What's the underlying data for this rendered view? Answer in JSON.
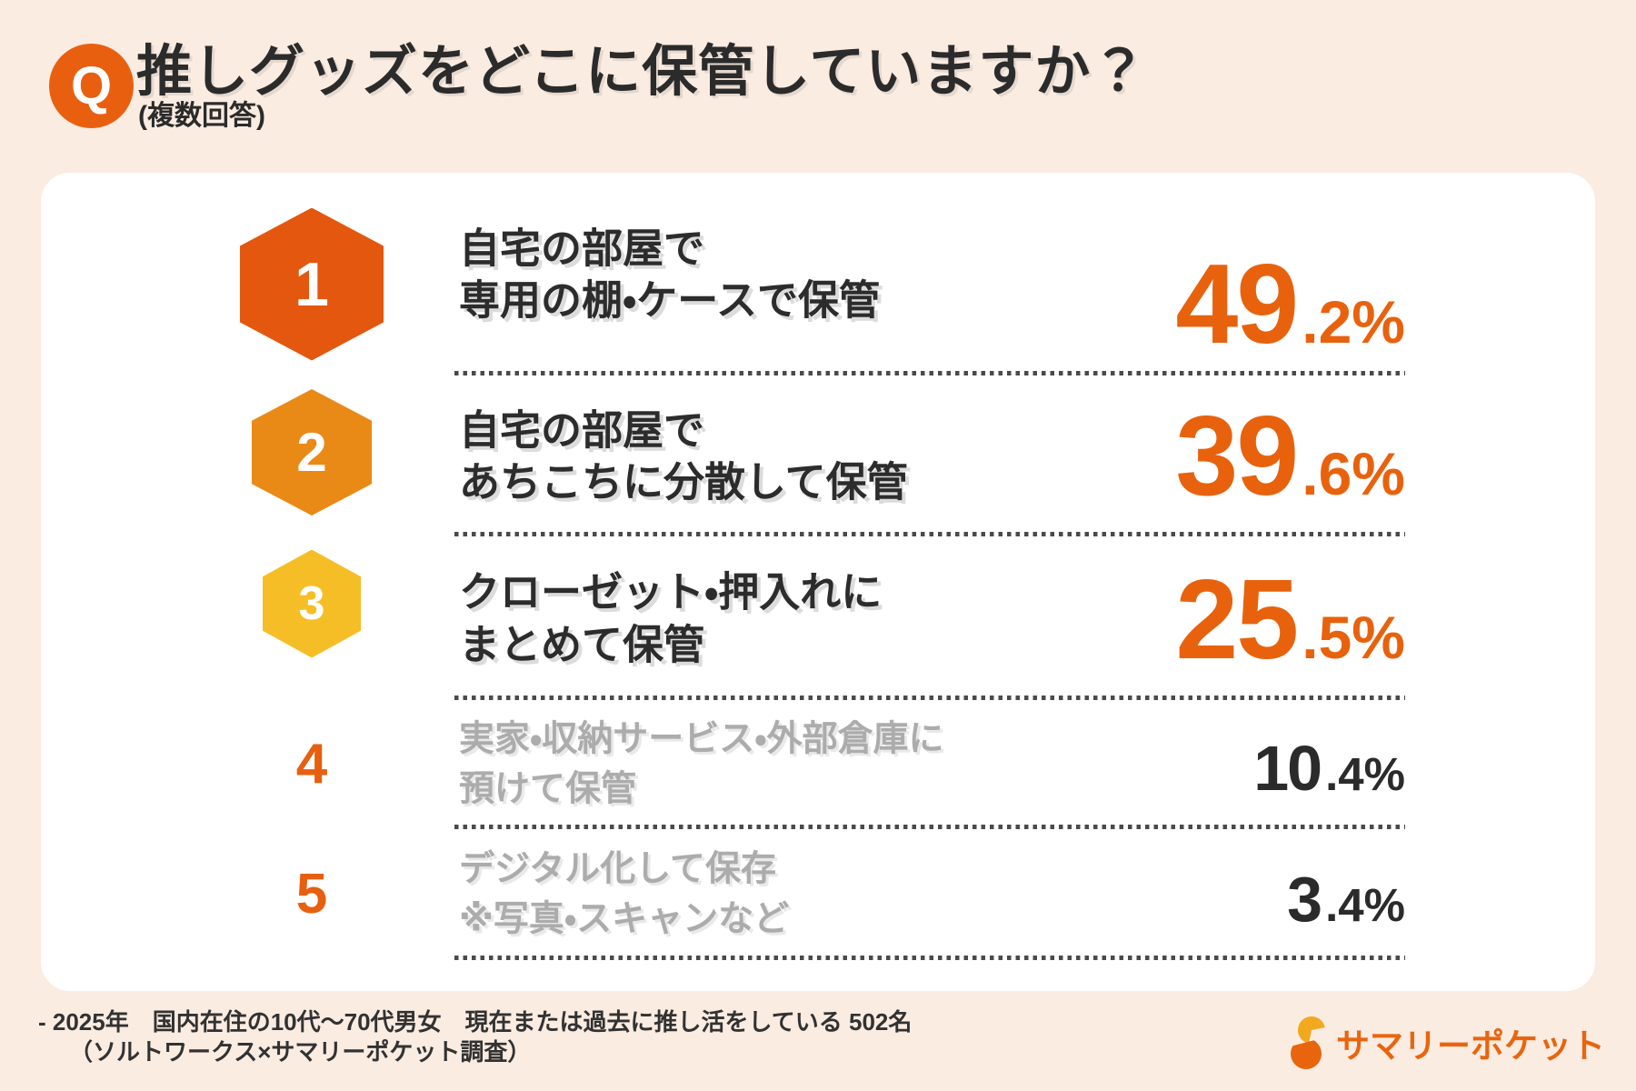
{
  "header": {
    "q_label": "Q",
    "title": "推しグッズをどこに保管していますか？",
    "subtitle": "(複数回答)"
  },
  "chart_data": {
    "type": "table",
    "title": "推しグッズをどこに保管していますか？",
    "subtitle": "(複数回答)",
    "categories": [
      "自宅の部屋で専用の棚・ケースで保管",
      "自宅の部屋であちこちに分散して保管",
      "クローゼット・押入れにまとめて保管",
      "実家・収納サービス・外部倉庫に預けて保管",
      "デジタル化して保存 ※写真・スキャンなど"
    ],
    "values": [
      49.2,
      39.6,
      25.5,
      10.4,
      3.4
    ],
    "ranks": [
      1,
      2,
      3,
      4,
      5
    ],
    "unit": "%"
  },
  "ranking": {
    "rows": [
      {
        "rank": "1",
        "label_line1": "自宅の部屋で",
        "label_line2": "専用の棚・ケースで保管",
        "value_main": "49",
        "value_sub": ".2%"
      },
      {
        "rank": "2",
        "label_line1": "自宅の部屋で",
        "label_line2": "あちこちに分散して保管",
        "value_main": "39",
        "value_sub": ".6%"
      },
      {
        "rank": "3",
        "label_line1": "クローゼット・押入れに",
        "label_line2": "まとめて保管",
        "value_main": "25",
        "value_sub": ".5%"
      },
      {
        "rank": "4",
        "label_line1": "実家・収納サービス・外部倉庫に",
        "label_line2": "預けて保管",
        "value_main": "10",
        "value_sub": ".4%"
      },
      {
        "rank": "5",
        "label_line1": "デジタル化して保存",
        "label_line2": "※写真・スキャンなど",
        "value_main": "3",
        "value_sub": ".4%"
      }
    ]
  },
  "footer": {
    "note_line1": "- 2025年　国内在住の10代～70代男女　現在または過去に推し活をしている 502名",
    "note_line2": "（ソルトワークス×サマリーポケット調査）",
    "logo_text": "サマリーポケット"
  },
  "colors": {
    "background": "#FBECE2",
    "card": "#FFFFFF",
    "brand_orange": "#E8600F",
    "rank1_hex": "#E4570E",
    "rank2_hex": "#E98A17",
    "rank3_hex": "#F6BE26",
    "percent_orange": "#E8620D",
    "percent_dark": "#2B2B2B",
    "label_dark": "#2C2C2C",
    "label_gray": "#ACACAC",
    "logo_yellow": "#F2A81F",
    "logo_orange": "#E8650E"
  }
}
